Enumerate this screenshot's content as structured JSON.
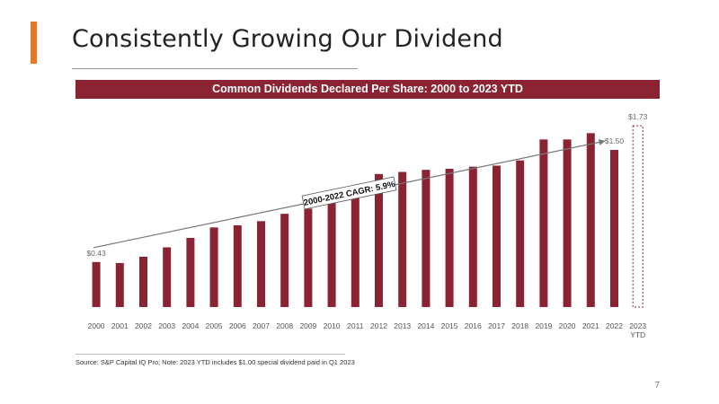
{
  "slide": {
    "title": "Consistently Growing Our Dividend",
    "footnote": "Source: S&P Capital IQ Pro; Note: 2023 YTD includes $1.00 special dividend paid in Q1 2023",
    "page_number": "7",
    "accent_color": "#e87722",
    "banner_color": "#8b2332"
  },
  "chart_data": {
    "type": "bar",
    "title": "Common Dividends Declared Per Share: 2000 to 2023 YTD",
    "categories": [
      "2000",
      "2001",
      "2002",
      "2003",
      "2004",
      "2005",
      "2006",
      "2007",
      "2008",
      "2009",
      "2010",
      "2011",
      "2012",
      "2013",
      "2014",
      "2015",
      "2016",
      "2017",
      "2018",
      "2019",
      "2020",
      "2021",
      "2022",
      "2023 YTD"
    ],
    "values": [
      0.43,
      0.42,
      0.48,
      0.57,
      0.66,
      0.76,
      0.78,
      0.82,
      0.89,
      0.94,
      1.04,
      1.15,
      1.27,
      1.29,
      1.31,
      1.32,
      1.34,
      1.35,
      1.4,
      1.6,
      1.6,
      1.66,
      1.5,
      1.73
    ],
    "bar_color": "#8b2332",
    "ytd_style": "dashed outline",
    "data_labels": [
      {
        "index": 0,
        "text": "$0.43"
      },
      {
        "index": 22,
        "text": "$1.50"
      },
      {
        "index": 23,
        "text": "$1.73"
      }
    ],
    "annotation": {
      "text": "2000-2022 CAGR: 5.9%",
      "from_index": 0,
      "to_index": 22
    },
    "ylim": [
      0,
      1.8
    ],
    "xlabel": "",
    "ylabel": "",
    "grid": false
  }
}
